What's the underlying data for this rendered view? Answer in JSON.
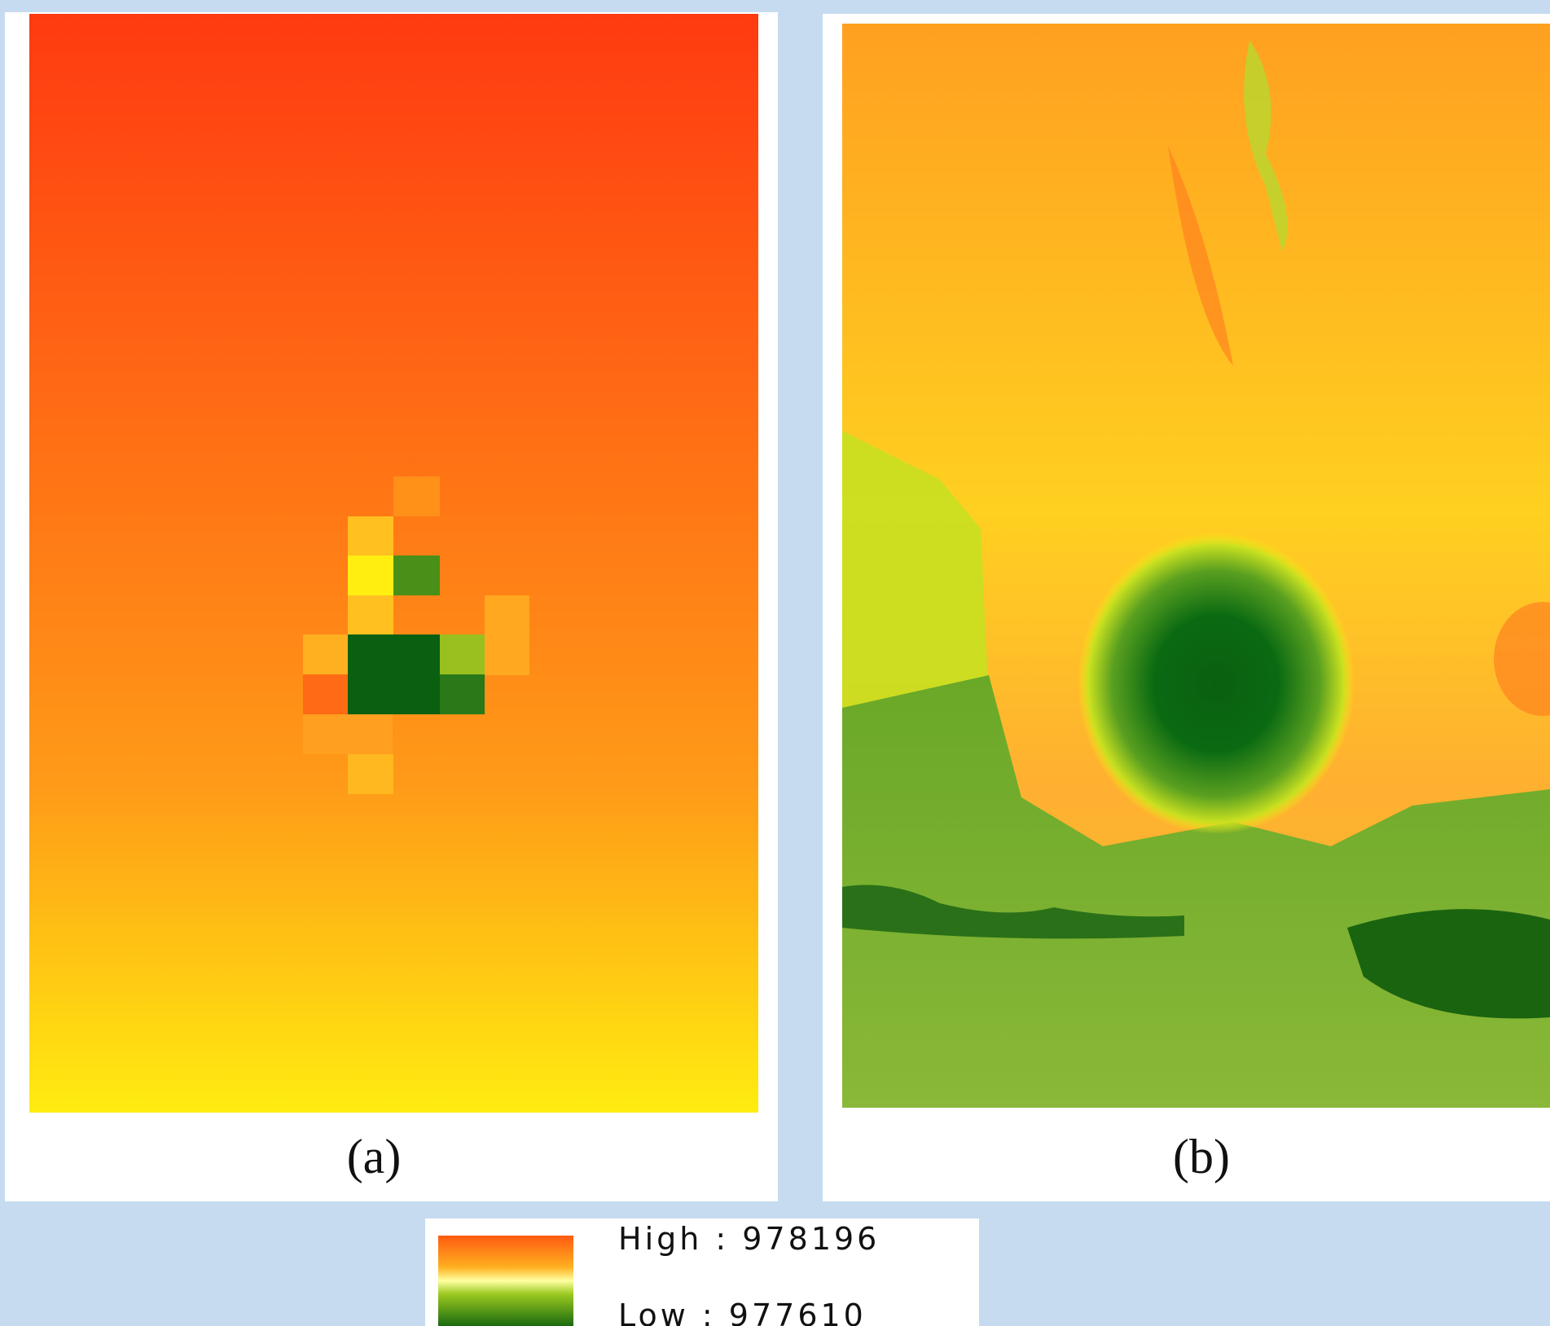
{
  "panels": [
    {
      "label": "(a)"
    },
    {
      "label": "(b)"
    }
  ],
  "legend": {
    "high": "High : 978196",
    "low": "Low : 977610"
  }
}
